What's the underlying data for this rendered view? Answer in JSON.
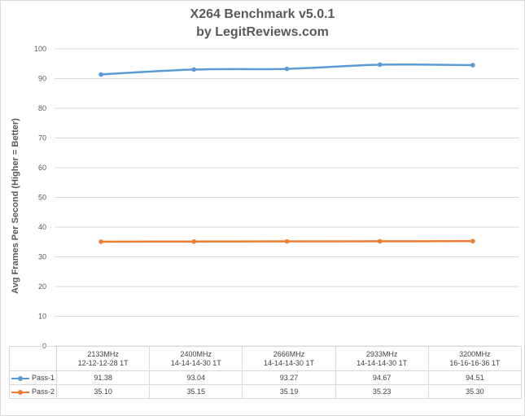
{
  "chart_data": {
    "type": "line",
    "title": "X264 Benchmark v5.0.1",
    "subtitle": "by LegitReviews.com",
    "ylabel": "Avg Frames Per Second (Higher = Better)",
    "xlabel": "",
    "ylim": [
      0,
      100
    ],
    "yticks": [
      "0",
      "10",
      "20",
      "30",
      "40",
      "50",
      "60",
      "70",
      "80",
      "90",
      "100"
    ],
    "grid": true,
    "legend": "data-table",
    "categories": [
      {
        "l1": "2133MHz",
        "l2": "12-12-12-28 1T"
      },
      {
        "l1": "2400MHz",
        "l2": "14-14-14-30 1T"
      },
      {
        "l1": "2666MHz",
        "l2": "14-14-14-30 1T"
      },
      {
        "l1": "2933MHz",
        "l2": "14-14-14-30 1T"
      },
      {
        "l1": "3200MHz",
        "l2": "16-16-16-36 1T"
      }
    ],
    "series": [
      {
        "name": "Pass-1",
        "color": "#5b9bd5",
        "values": [
          91.38,
          93.04,
          93.27,
          94.67,
          94.51
        ],
        "labels": [
          "91.38",
          "93.04",
          "93.27",
          "94.67",
          "94.51"
        ]
      },
      {
        "name": "Pass-2",
        "color": "#ed7d31",
        "values": [
          35.1,
          35.15,
          35.19,
          35.23,
          35.3
        ],
        "labels": [
          "35.10",
          "35.15",
          "35.19",
          "35.23",
          "35.30"
        ]
      }
    ]
  }
}
